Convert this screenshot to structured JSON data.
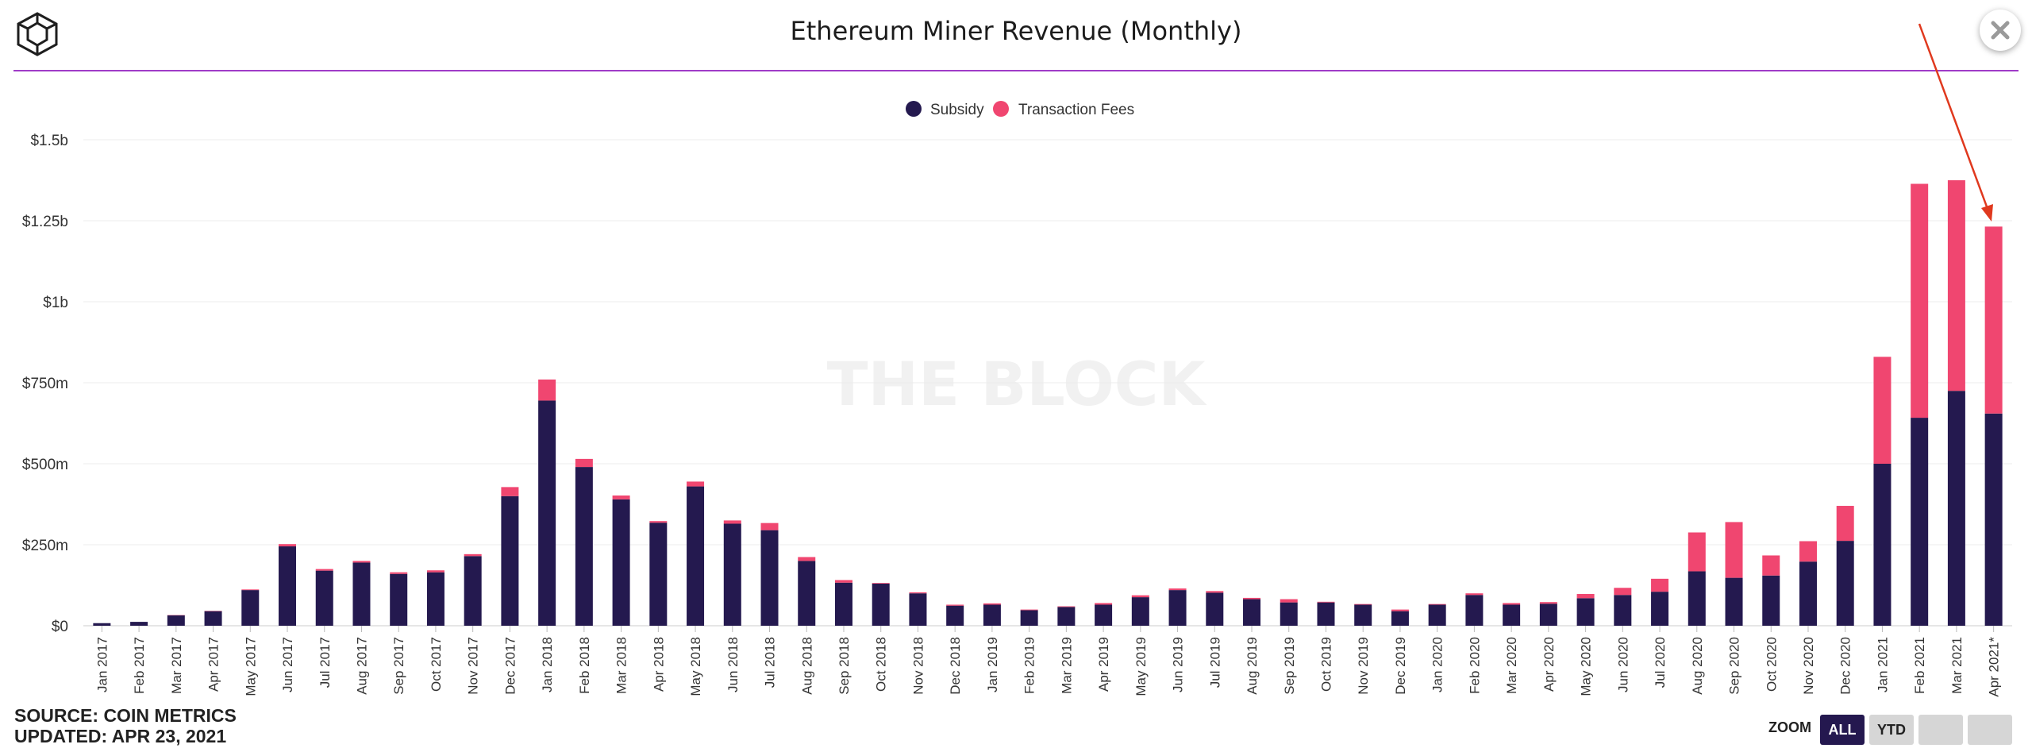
{
  "title": "Ethereum Miner Revenue (Monthly)",
  "watermark": "THE BLOCK",
  "source": {
    "line1": "SOURCE: COIN METRICS",
    "line2": "UPDATED: APR 23, 2021"
  },
  "zoom": {
    "label": "ZOOM",
    "buttons": [
      "ALL",
      "YTD",
      "",
      ""
    ],
    "active": "ALL"
  },
  "icons": {
    "logo": "cube-logo-icon",
    "close": "close-icon",
    "annotation": "red-arrow-annotation"
  },
  "colors": {
    "subsidy": "#24194f",
    "fees": "#f04670",
    "accent_rule": "#a03cc8",
    "arrow": "#e0391e"
  },
  "chart_data": {
    "type": "bar",
    "stacked": true,
    "title": "Ethereum Miner Revenue (Monthly)",
    "xlabel": "",
    "ylabel": "",
    "ylim": [
      0,
      1500000000
    ],
    "yticks": [
      {
        "value": 0,
        "label": "$0"
      },
      {
        "value": 250000000,
        "label": "$250m"
      },
      {
        "value": 500000000,
        "label": "$500m"
      },
      {
        "value": 750000000,
        "label": "$750m"
      },
      {
        "value": 1000000000,
        "label": "$1b"
      },
      {
        "value": 1250000000,
        "label": "$1.25b"
      },
      {
        "value": 1500000000,
        "label": "$1.5b"
      }
    ],
    "grid": true,
    "legend": "top-center",
    "categories": [
      "Jan 2017",
      "Feb 2017",
      "Mar 2017",
      "Apr 2017",
      "May 2017",
      "Jun 2017",
      "Jul 2017",
      "Aug 2017",
      "Sep 2017",
      "Oct 2017",
      "Nov 2017",
      "Dec 2017",
      "Jan 2018",
      "Feb 2018",
      "Mar 2018",
      "Apr 2018",
      "May 2018",
      "Jun 2018",
      "Jul 2018",
      "Aug 2018",
      "Sep 2018",
      "Oct 2018",
      "Nov 2018",
      "Dec 2018",
      "Jan 2019",
      "Feb 2019",
      "Mar 2019",
      "Apr 2019",
      "May 2019",
      "Jun 2019",
      "Jul 2019",
      "Aug 2019",
      "Sep 2019",
      "Oct 2019",
      "Nov 2019",
      "Dec 2019",
      "Jan 2020",
      "Feb 2020",
      "Mar 2020",
      "Apr 2020",
      "May 2020",
      "Jun 2020",
      "Jul 2020",
      "Aug 2020",
      "Sep 2020",
      "Oct 2020",
      "Nov 2020",
      "Dec 2020",
      "Jan 2021",
      "Feb 2021",
      "Mar 2021",
      "Apr 2021*"
    ],
    "series": [
      {
        "name": "Subsidy",
        "color": "#24194f",
        "values": [
          8000000,
          12000000,
          32000000,
          45000000,
          110000000,
          245000000,
          170000000,
          195000000,
          160000000,
          165000000,
          215000000,
          400000000,
          695000000,
          490000000,
          390000000,
          318000000,
          430000000,
          315000000,
          295000000,
          200000000,
          133000000,
          130000000,
          100000000,
          62000000,
          65000000,
          48000000,
          58000000,
          65000000,
          88000000,
          110000000,
          102000000,
          82000000,
          72000000,
          72000000,
          65000000,
          45000000,
          65000000,
          95000000,
          65000000,
          68000000,
          85000000,
          95000000,
          105000000,
          168000000,
          148000000,
          155000000,
          198000000,
          262000000,
          500000000,
          642000000,
          725000000,
          655000000
        ]
      },
      {
        "name": "Transaction Fees",
        "color": "#f04670",
        "values": [
          0,
          0,
          1000000,
          1000000,
          2000000,
          7000000,
          5000000,
          5000000,
          5000000,
          6000000,
          6000000,
          28000000,
          65000000,
          25000000,
          12000000,
          5000000,
          15000000,
          10000000,
          22000000,
          12000000,
          8000000,
          2000000,
          3000000,
          3000000,
          4000000,
          2000000,
          2000000,
          5000000,
          6000000,
          5000000,
          5000000,
          4000000,
          10000000,
          2000000,
          2000000,
          5000000,
          2000000,
          5000000,
          5000000,
          5000000,
          13000000,
          22000000,
          40000000,
          120000000,
          172000000,
          62000000,
          63000000,
          108000000,
          330000000,
          722000000,
          650000000,
          577000000
        ]
      }
    ]
  }
}
